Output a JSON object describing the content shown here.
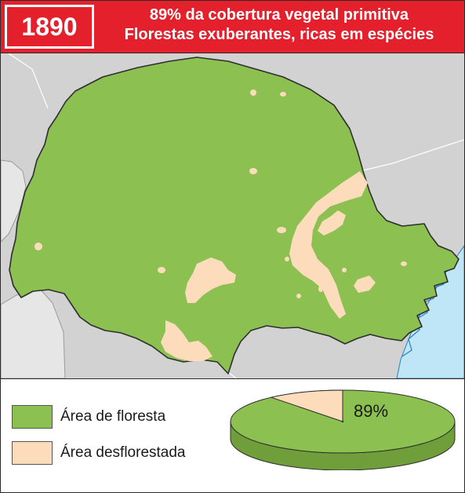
{
  "header": {
    "year": "1890",
    "title_line1": "89% da cobertura vegetal primitiva",
    "title_line2": "Florestas exuberantes, ricas em espécies"
  },
  "legend": {
    "forest_label": "Área de floresta",
    "deforested_label": "Área desflorestada"
  },
  "pie": {
    "percent_label": "89%",
    "forest_percent": 89
  },
  "colors": {
    "forest": "#8cc152",
    "forest_border": "#2e2e2e",
    "deforested": "#fddcbc",
    "neighbor": "#d2d2d2",
    "ocean": "#bfe6f7",
    "header": "#e3202b",
    "pie_side": "#6f9e3a"
  }
}
